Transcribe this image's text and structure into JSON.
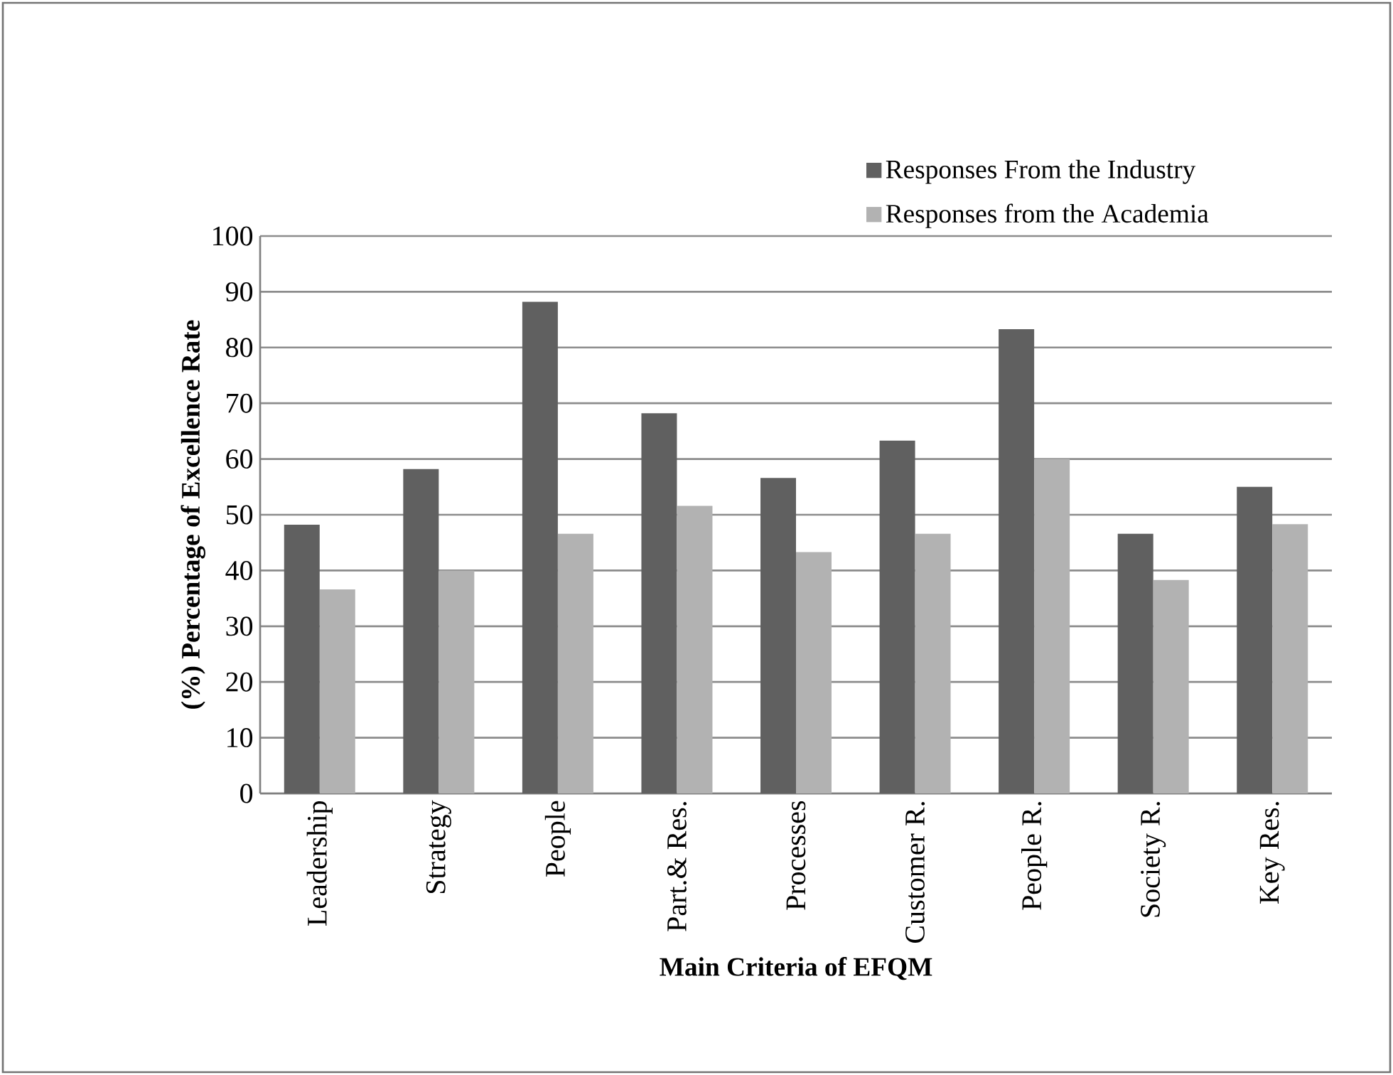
{
  "chart_data": {
    "type": "bar",
    "xlabel": "Main Criteria of EFQM",
    "ylabel": "(%) Percentage of Excellence Rate",
    "categories": [
      "Leadership",
      "Strategy",
      "People",
      "Part.& Res.",
      "Processes",
      "Customer R.",
      "People R.",
      "Society R.",
      "Key Res."
    ],
    "series": [
      {
        "name": "Responses From the Industry",
        "color": "#606060",
        "values": [
          48.2,
          58.2,
          88.2,
          68.2,
          56.6,
          63.3,
          83.3,
          46.6,
          55
        ]
      },
      {
        "name": "Responses from the Academia",
        "color": "#b2b2b2",
        "values": [
          36.6,
          40,
          46.6,
          51.6,
          43.3,
          46.6,
          60,
          38.3,
          48.3
        ]
      }
    ],
    "ylim": [
      0,
      100
    ],
    "yticks": [
      0,
      10,
      20,
      30,
      40,
      50,
      60,
      70,
      80,
      90,
      100
    ],
    "grid": "y",
    "legend": "top right"
  }
}
